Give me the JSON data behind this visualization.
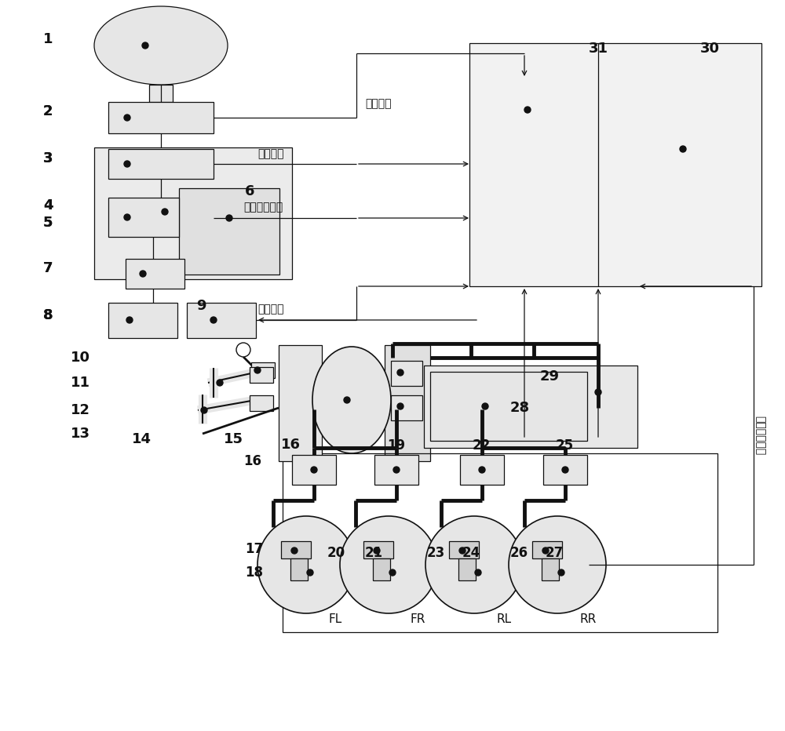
{
  "bg": "#ffffff",
  "gray": "#d0d0d0",
  "lgray": "#e6e6e6",
  "dark": "#111111",
  "sa": "转角信号",
  "st": "转矩信号",
  "ss": "转向阻力信号",
  "sth": "油门信号",
  "sw": "轮缸压力信号"
}
